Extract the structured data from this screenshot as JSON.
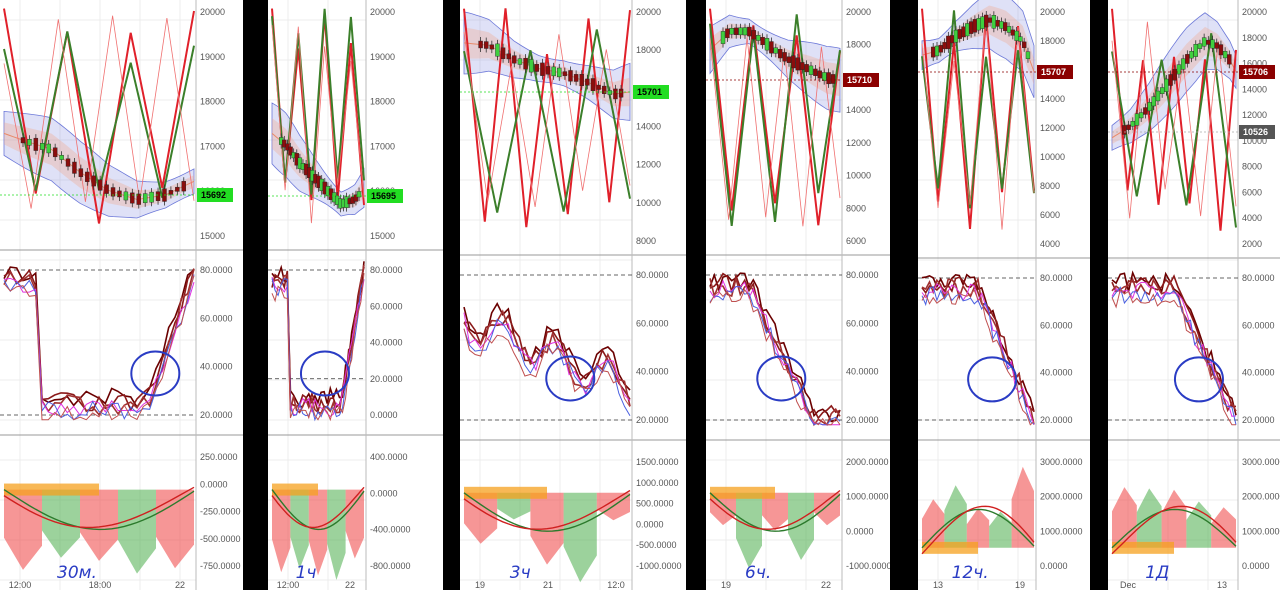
{
  "panels": [
    {
      "timeframe_note": "30м.",
      "x_ticks": [
        "12:00",
        "18:00",
        "22"
      ],
      "price": {
        "ticks": [
          "20000",
          "19000",
          "18000",
          "17000",
          "16000",
          "15000"
        ],
        "last": "15692",
        "last_color": "#22dd22",
        "last_text_color": "#000000",
        "extra_marker": "",
        "extra_marker_color": ""
      },
      "osc": {
        "ticks": [
          "80.0000",
          "60.0000",
          "40.0000",
          "20.0000"
        ]
      },
      "macd": {
        "ticks": [
          "250.0000",
          "0.0000",
          "-250.0000",
          "-500.0000",
          "-750.0000"
        ]
      }
    },
    {
      "timeframe_note": "1ч",
      "x_ticks": [
        "12:00",
        "22"
      ],
      "price": {
        "ticks": [
          "20000",
          "19000",
          "18000",
          "17000",
          "16000",
          "15000"
        ],
        "last": "15695",
        "last_color": "#22dd22",
        "last_text_color": "#000000",
        "extra_marker": "",
        "extra_marker_color": ""
      },
      "osc": {
        "ticks": [
          "80.0000",
          "60.0000",
          "40.0000",
          "20.0000",
          "0.0000"
        ]
      },
      "macd": {
        "ticks": [
          "400.0000",
          "0.0000",
          "-400.0000",
          "-800.0000"
        ]
      }
    },
    {
      "timeframe_note": "3ч",
      "x_ticks": [
        "19",
        "21",
        "12:0"
      ],
      "price": {
        "ticks": [
          "20000",
          "18000",
          "16000",
          "14000",
          "12000",
          "10000",
          "8000"
        ],
        "last": "15701",
        "last_color": "#22dd22",
        "last_text_color": "#000000",
        "extra_marker": "",
        "extra_marker_color": ""
      },
      "osc": {
        "ticks": [
          "80.0000",
          "60.0000",
          "40.0000",
          "20.0000"
        ]
      },
      "macd": {
        "ticks": [
          "1500.0000",
          "1000.0000",
          "500.0000",
          "0.0000",
          "-500.0000",
          "-1000.0000"
        ]
      }
    },
    {
      "timeframe_note": "6ч.",
      "x_ticks": [
        "19",
        "22"
      ],
      "price": {
        "ticks": [
          "20000",
          "18000",
          "16000",
          "14000",
          "12000",
          "10000",
          "8000",
          "6000"
        ],
        "last": "15710",
        "last_color": "#8b0000",
        "last_text_color": "#ffffff",
        "extra_marker": "",
        "extra_marker_color": ""
      },
      "osc": {
        "ticks": [
          "80.0000",
          "60.0000",
          "40.0000",
          "20.0000"
        ]
      },
      "macd": {
        "ticks": [
          "2000.0000",
          "1000.0000",
          "0.0000",
          "-1000.0000"
        ]
      }
    },
    {
      "timeframe_note": "12ч.",
      "x_ticks": [
        "13",
        "19"
      ],
      "price": {
        "ticks": [
          "20000",
          "18000",
          "16000",
          "14000",
          "12000",
          "10000",
          "8000",
          "6000",
          "4000"
        ],
        "last": "15707",
        "last_color": "#8b0000",
        "last_text_color": "#ffffff",
        "extra_marker": "",
        "extra_marker_color": ""
      },
      "osc": {
        "ticks": [
          "80.0000",
          "60.0000",
          "40.0000",
          "20.0000"
        ]
      },
      "macd": {
        "ticks": [
          "3000.0000",
          "2000.0000",
          "1000.0000",
          "0.0000"
        ]
      }
    },
    {
      "timeframe_note": "1Д",
      "x_ticks": [
        "Dec",
        "13"
      ],
      "price": {
        "ticks": [
          "20000",
          "18000",
          "16000",
          "14000",
          "12000",
          "10000",
          "8000",
          "6000",
          "4000",
          "2000"
        ],
        "last": "15706",
        "last_color": "#8b0000",
        "last_text_color": "#ffffff",
        "extra_marker": "10526",
        "extra_marker_color": "#555555"
      },
      "osc": {
        "ticks": [
          "80.0000",
          "60.0000",
          "40.0000",
          "20.0000"
        ]
      },
      "macd": {
        "ticks": [
          "3000.0000",
          "2000.0000",
          "1000.0000",
          "0.0000"
        ]
      }
    }
  ],
  "chart_data": [
    {
      "type": "line",
      "timeframe": "30м.",
      "last_price": 15692,
      "price_range": [
        14600,
        20000
      ]
    },
    {
      "type": "line",
      "timeframe": "1ч",
      "last_price": 15695,
      "price_range": [
        14600,
        20000
      ]
    },
    {
      "type": "line",
      "timeframe": "3ч",
      "last_price": 15701,
      "price_range": [
        7600,
        20000
      ]
    },
    {
      "type": "line",
      "timeframe": "6ч.",
      "last_price": 15710,
      "price_range": [
        5000,
        20000
      ]
    },
    {
      "type": "line",
      "timeframe": "12ч.",
      "last_price": 15707,
      "price_range": [
        3000,
        20000
      ]
    },
    {
      "type": "line",
      "timeframe": "1Д",
      "last_price": 15706,
      "price_range": [
        1000,
        20000
      ]
    }
  ]
}
